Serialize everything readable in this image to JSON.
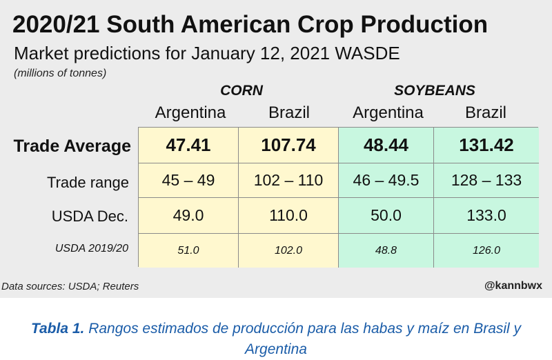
{
  "chart_data": {
    "type": "table",
    "title": "2020/21 South American Crop Production",
    "subtitle": "Market predictions for January 12, 2021 WASDE",
    "units": "(millions of tonnes)",
    "groups": [
      {
        "name": "CORN",
        "columns": [
          "Argentina",
          "Brazil"
        ]
      },
      {
        "name": "SOYBEANS",
        "columns": [
          "Argentina",
          "Brazil"
        ]
      }
    ],
    "rows": [
      {
        "label": "Trade Average",
        "values": [
          "47.41",
          "107.74",
          "48.44",
          "131.42"
        ]
      },
      {
        "label": "Trade range",
        "values": [
          "45 – 49",
          "102 – 110",
          "46 – 49.5",
          "128 – 133"
        ]
      },
      {
        "label": "USDA Dec.",
        "values": [
          "49.0",
          "110.0",
          "50.0",
          "133.0"
        ]
      },
      {
        "label": "USDA 2019/20",
        "values": [
          "51.0",
          "102.0",
          "48.8",
          "126.0"
        ]
      }
    ],
    "source": "Data sources: USDA; Reuters",
    "credit": "@kannbwx",
    "colors": {
      "corn": "#fff8cf",
      "soybeans": "#c8f7e0",
      "caption": "#1a5ca8"
    }
  },
  "caption": {
    "label": "Tabla 1.",
    "text": " Rangos estimados de producción para las habas y maíz en Brasil y Argentina"
  }
}
